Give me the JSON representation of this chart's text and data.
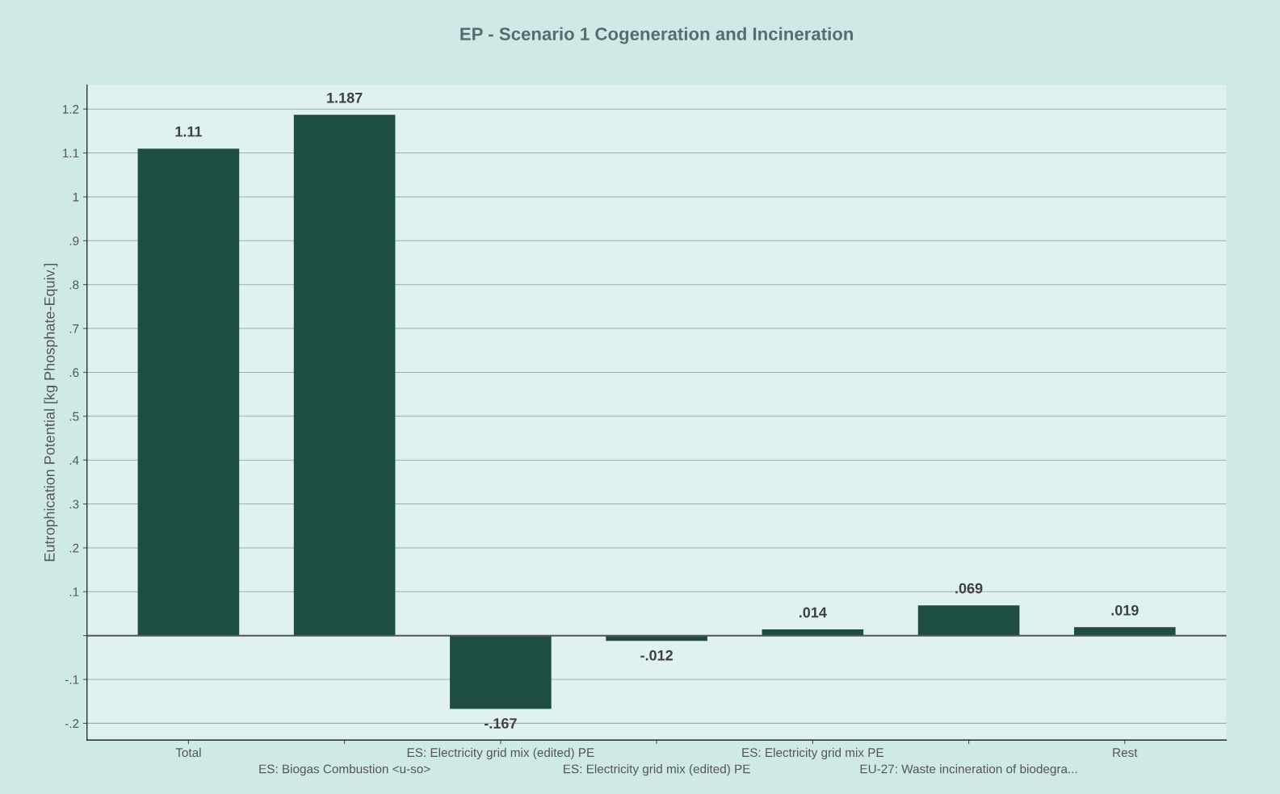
{
  "chart_data": {
    "type": "bar",
    "title": "EP - Scenario 1 Cogeneration and Incineration",
    "ylabel": "Eutrophication Potential [kg Phosphate-Equiv.]",
    "categories": [
      "Total",
      "ES: Biogas Combustion <u-so>",
      "ES: Electricity grid mix (edited) PE",
      "ES: Electricity grid mix (edited) PE",
      "ES: Electricity grid mix PE",
      "EU-27: Waste incineration of biodegra...",
      "Rest"
    ],
    "values": [
      1.11,
      1.187,
      -0.167,
      -0.012,
      0.014,
      0.069,
      0.019
    ],
    "value_labels": [
      "1.11",
      "1.187",
      "-.167",
      "-.012",
      ".014",
      ".069",
      ".019"
    ],
    "color": "#1e4d44",
    "ylim": [
      -0.238,
      1.255
    ],
    "yticks": [
      {
        "value": -0.2,
        "label": "-.2"
      },
      {
        "value": -0.1,
        "label": "-.1"
      },
      {
        "value": 0,
        "label": null
      },
      {
        "value": 0.1,
        "label": ".1"
      },
      {
        "value": 0.2,
        "label": ".2"
      },
      {
        "value": 0.3,
        "label": ".3"
      },
      {
        "value": 0.4,
        "label": ".4"
      },
      {
        "value": 0.5,
        "label": ".5"
      },
      {
        "value": 0.6,
        "label": ".6"
      },
      {
        "value": 0.7,
        "label": ".7"
      },
      {
        "value": 0.8,
        "label": ".8"
      },
      {
        "value": 0.9,
        "label": ".9"
      },
      {
        "value": 1,
        "label": "1"
      },
      {
        "value": 1.1,
        "label": "1.1"
      },
      {
        "value": 1.2,
        "label": "1.2"
      }
    ],
    "grid": "y"
  }
}
